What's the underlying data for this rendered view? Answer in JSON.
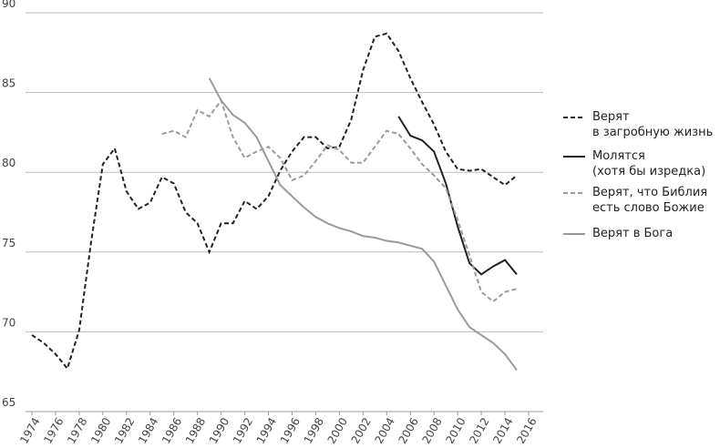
{
  "chart_data": {
    "type": "line",
    "x": [
      1974,
      1975,
      1976,
      1977,
      1978,
      1979,
      1980,
      1981,
      1982,
      1983,
      1984,
      1985,
      1986,
      1987,
      1988,
      1989,
      1990,
      1991,
      1992,
      1993,
      1994,
      1995,
      1996,
      1997,
      1998,
      1999,
      2000,
      2001,
      2002,
      2003,
      2004,
      2005,
      2006,
      2007,
      2008,
      2009,
      2010,
      2011,
      2012,
      2013,
      2014,
      2015
    ],
    "series": [
      {
        "name": "Верят\nв загробную жизнь",
        "color": "#222222",
        "dash": "5,3",
        "values": [
          69.8,
          69.3,
          68.6,
          67.7,
          70.1,
          75.6,
          80.5,
          81.5,
          78.8,
          77.7,
          78.1,
          79.7,
          79.3,
          77.5,
          76.8,
          75.0,
          76.8,
          76.8,
          78.2,
          77.7,
          78.5,
          80.1,
          81.3,
          82.2,
          82.2,
          81.5,
          81.6,
          83.3,
          86.4,
          88.5,
          88.7,
          87.6,
          85.9,
          84.4,
          83.0,
          81.3,
          80.2,
          80.1,
          80.2,
          79.7,
          79.2,
          79.8
        ]
      },
      {
        "name": "Молятся\n(хотя бы изредка)",
        "color": "#222222",
        "dash": "none",
        "values": [
          null,
          null,
          null,
          null,
          null,
          null,
          null,
          null,
          null,
          null,
          null,
          null,
          null,
          null,
          null,
          null,
          null,
          null,
          null,
          null,
          null,
          null,
          null,
          null,
          null,
          null,
          null,
          null,
          null,
          null,
          null,
          83.5,
          82.3,
          82.0,
          81.3,
          79.3,
          76.6,
          74.3,
          73.6,
          74.1,
          74.5,
          73.6
        ]
      },
      {
        "name": "Верят, что Библия\nесть слово Божие",
        "color": "#9a9a9a",
        "dash": "5,3",
        "values": [
          null,
          null,
          null,
          null,
          null,
          null,
          null,
          null,
          null,
          null,
          null,
          82.4,
          82.6,
          82.2,
          83.9,
          83.5,
          84.5,
          82.2,
          80.9,
          81.3,
          81.6,
          80.9,
          79.5,
          79.8,
          80.7,
          81.7,
          81.4,
          80.6,
          80.6,
          81.6,
          82.6,
          82.4,
          81.5,
          80.5,
          79.8,
          79.0,
          77.0,
          74.8,
          72.5,
          71.9,
          72.5,
          72.7
        ]
      },
      {
        "name": "Верят в Бога",
        "color": "#9a9a9a",
        "dash": "none",
        "values": [
          null,
          null,
          null,
          null,
          null,
          null,
          null,
          null,
          null,
          null,
          null,
          null,
          null,
          null,
          null,
          85.9,
          84.5,
          83.6,
          83.1,
          82.2,
          80.7,
          79.2,
          78.5,
          77.8,
          77.2,
          76.8,
          76.5,
          76.3,
          76.0,
          75.9,
          75.7,
          75.6,
          75.4,
          75.2,
          74.4,
          72.9,
          71.4,
          70.3,
          69.8,
          69.3,
          68.6,
          67.6
        ]
      }
    ],
    "xlim": [
      1974,
      2016
    ],
    "xticks": [
      1974,
      1976,
      1978,
      1980,
      1982,
      1984,
      1986,
      1988,
      1990,
      1992,
      1994,
      1996,
      1998,
      2000,
      2002,
      2004,
      2006,
      2008,
      2010,
      2012,
      2014,
      2016
    ],
    "ylim": [
      65,
      90
    ],
    "yticks": [
      65,
      70,
      75,
      80,
      85,
      90
    ],
    "grid": true
  }
}
